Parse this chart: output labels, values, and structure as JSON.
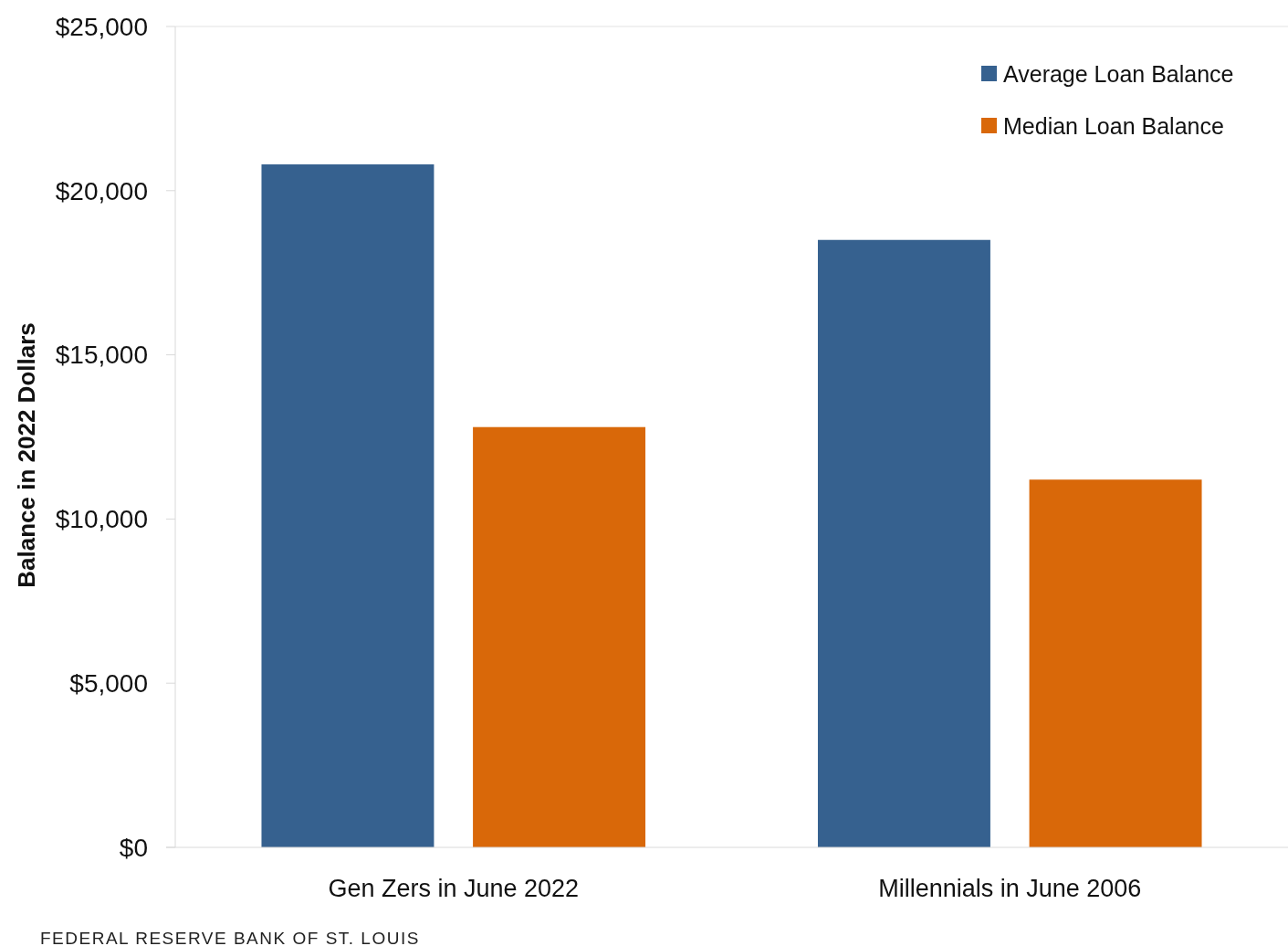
{
  "chart_data": {
    "type": "bar",
    "ylabel": "Balance in 2022 Dollars",
    "categories": [
      "Gen Zers in June 2022",
      "Millennials in June 2006"
    ],
    "series": [
      {
        "name": "Average Loan Balance",
        "color": "#36618f",
        "values": [
          20800,
          18500
        ]
      },
      {
        "name": "Median Loan Balance",
        "color": "#d96809",
        "values": [
          12800,
          11200
        ]
      }
    ],
    "ylim": [
      0,
      25000
    ],
    "yticks": [
      {
        "value": 0,
        "label": "$0"
      },
      {
        "value": 5000,
        "label": "$5,000"
      },
      {
        "value": 10000,
        "label": "$10,000"
      },
      {
        "value": 15000,
        "label": "$15,000"
      },
      {
        "value": 20000,
        "label": "$20,000"
      },
      {
        "value": 25000,
        "label": "$25,000"
      }
    ],
    "grid": false,
    "legend": "top right",
    "annotations": [
      "FEDERAL RESERVE BANK OF ST. LOUIS"
    ]
  }
}
